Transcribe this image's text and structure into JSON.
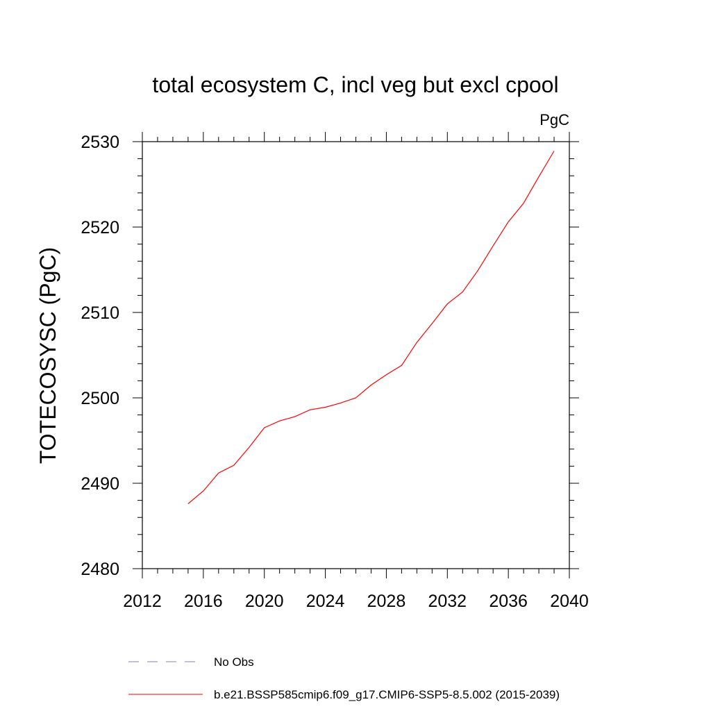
{
  "chart_data": {
    "type": "line",
    "title": "total ecosystem C, incl veg but excl cpool",
    "units": "PgC",
    "ylabel": "TOTECOSYSC  (PgC)",
    "xlabel": "",
    "xlim": [
      2012,
      2040
    ],
    "ylim": [
      2480,
      2530
    ],
    "xticks": [
      2012,
      2016,
      2020,
      2024,
      2028,
      2032,
      2036,
      2040
    ],
    "yticks": [
      2480,
      2490,
      2500,
      2510,
      2520,
      2530
    ],
    "x_minor_step": 1,
    "y_minor_step": 2,
    "grid": false,
    "legend_position": "bottom",
    "series": [
      {
        "name": "b.e21.BSSP585cmip6.f09_g17.CMIP6-SSP5-8.5.002 (2015-2039)",
        "color": "#ff0000",
        "dash": "solid",
        "x": [
          2015,
          2016,
          2017,
          2018,
          2019,
          2020,
          2021,
          2022,
          2023,
          2024,
          2025,
          2026,
          2027,
          2028,
          2029,
          2030,
          2031,
          2032,
          2033,
          2034,
          2035,
          2036,
          2037,
          2038,
          2039
        ],
        "values": [
          2487.6,
          2489.1,
          2491.2,
          2492.1,
          2494.2,
          2496.5,
          2497.3,
          2497.8,
          2498.6,
          2498.9,
          2499.4,
          2500.0,
          2501.5,
          2502.7,
          2503.8,
          2506.5,
          2508.7,
          2511.0,
          2512.4,
          2514.9,
          2517.8,
          2520.6,
          2522.8,
          2525.9,
          2528.9
        ]
      }
    ],
    "legend": [
      {
        "label": "No Obs",
        "color": "#7f7fbf",
        "dash": "dashed"
      },
      {
        "label": "b.e21.BSSP585cmip6.f09_g17.CMIP6-SSP5-8.5.002 (2015-2039)",
        "color": "#ff0000",
        "dash": "solid"
      }
    ]
  }
}
